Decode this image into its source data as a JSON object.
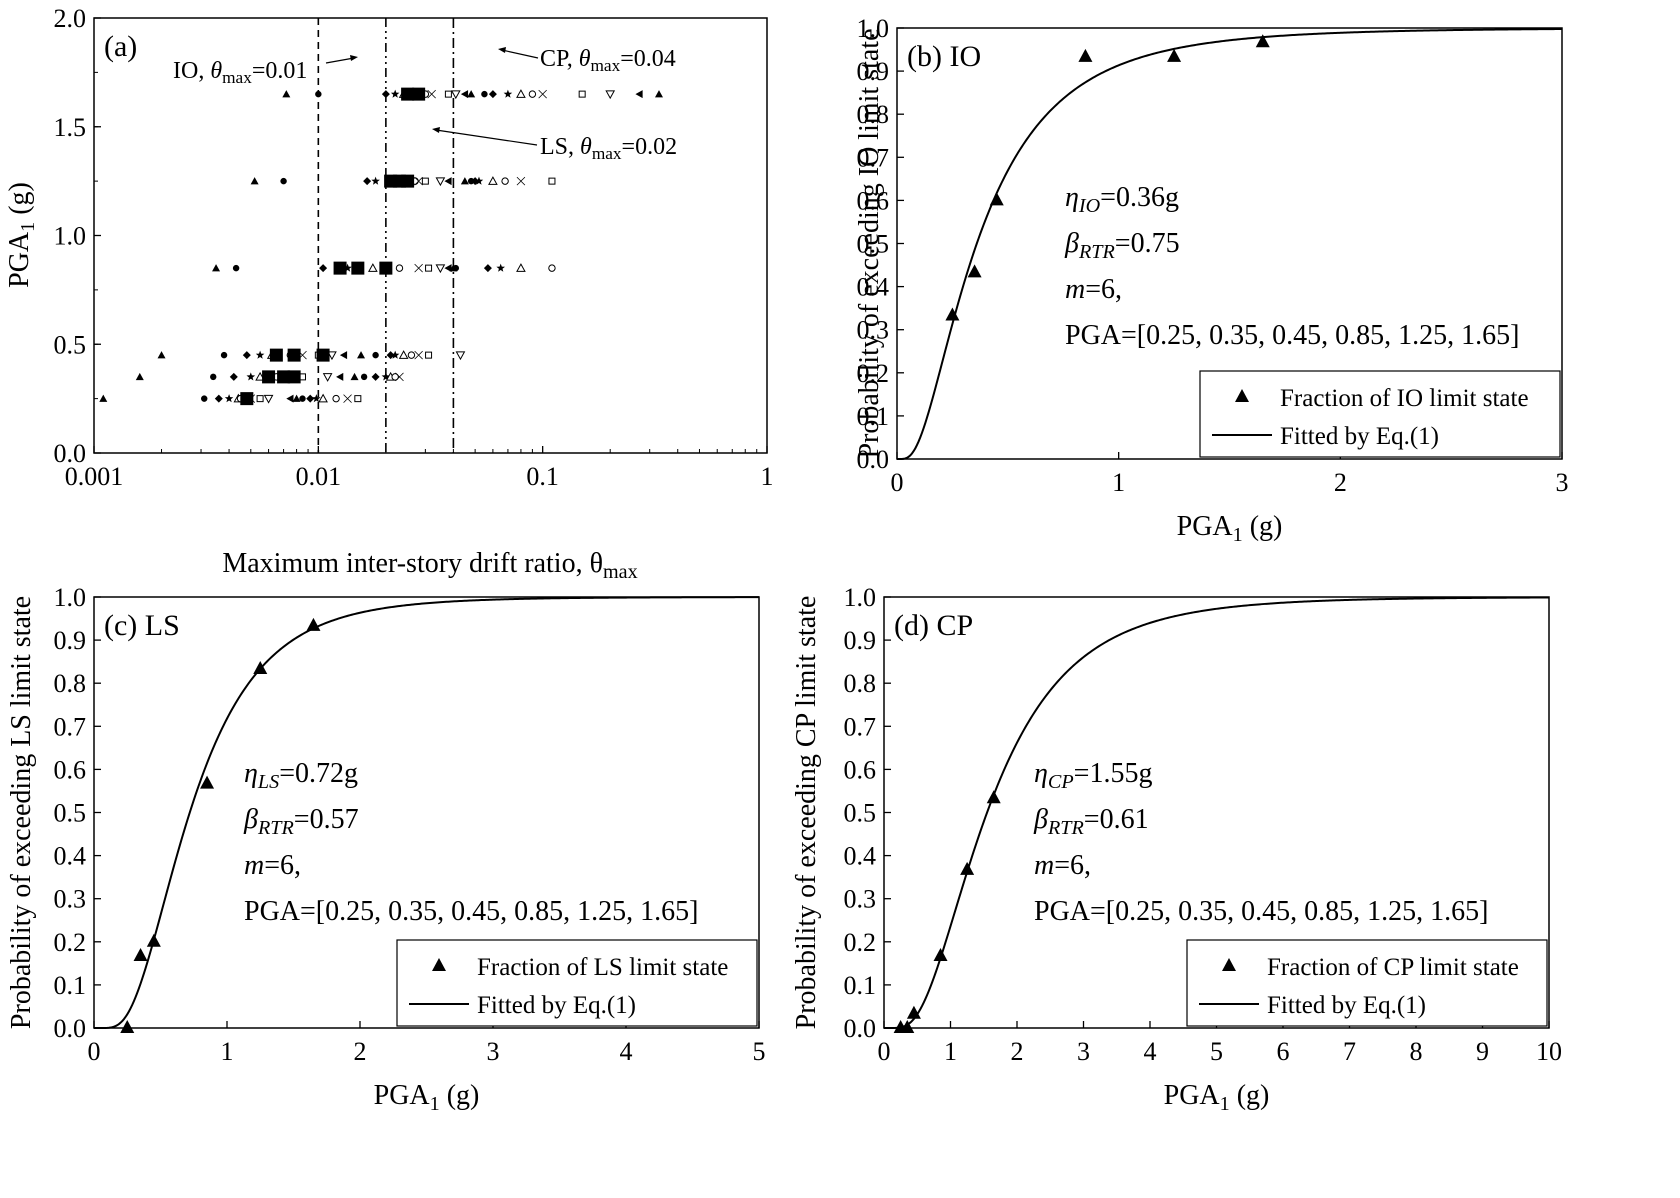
{
  "chart_data": [
    {
      "id": "a",
      "type": "scatter",
      "panel_label": "(a)",
      "xscale": "log",
      "xlim": [
        0.001,
        1
      ],
      "ylim": [
        0,
        2.0
      ],
      "xticks": [
        0.001,
        0.01,
        0.1,
        1
      ],
      "xtick_labels": [
        "0.001",
        "0.01",
        "0.1",
        "1"
      ],
      "yticks": [
        0,
        0.5,
        1.0,
        1.5,
        2.0
      ],
      "ytick_labels": [
        "0.0",
        "0.5",
        "1.0",
        "1.5",
        "2.0"
      ],
      "xlabel": "Maximum inter-story drift ratio, θ",
      "xlabel_sub": "max",
      "ylabel": "PGA",
      "ylabel_sub": "1",
      "ylabel_tail": " (g)",
      "limit_lines": [
        {
          "name": "IO",
          "x": 0.01,
          "text": "IO, ",
          "theta": "θ",
          "sub": "max",
          "value": "=0.01",
          "style": "dashed"
        },
        {
          "name": "LS",
          "x": 0.02,
          "text": "LS, ",
          "theta": "θ",
          "sub": "max",
          "value": "=0.02",
          "style": "dashdotdot"
        },
        {
          "name": "CP",
          "x": 0.04,
          "text": "CP, ",
          "theta": "θ",
          "sub": "max",
          "value": "=0.04",
          "style": "dashdot"
        }
      ],
      "groups": [
        {
          "pga": 0.25,
          "drifts": [
            0.0011,
            0.0031,
            0.0036,
            0.004,
            0.0044,
            0.0045,
            0.005,
            0.0055,
            0.006,
            0.0075,
            0.008,
            0.0085,
            0.0092,
            0.0098,
            0.0105,
            0.012,
            0.0135,
            0.015
          ],
          "medians": [
            0.0048
          ]
        },
        {
          "pga": 0.35,
          "drifts": [
            0.0016,
            0.0034,
            0.0042,
            0.005,
            0.0055,
            0.0065,
            0.0075,
            0.0085,
            0.011,
            0.0125,
            0.0145,
            0.016,
            0.018,
            0.02,
            0.021,
            0.022,
            0.023
          ],
          "medians": [
            0.006,
            0.007,
            0.0078
          ]
        },
        {
          "pga": 0.45,
          "drifts": [
            0.002,
            0.0038,
            0.0048,
            0.0055,
            0.0062,
            0.0075,
            0.0085,
            0.01,
            0.0115,
            0.013,
            0.0155,
            0.018,
            0.021,
            0.022,
            0.024,
            0.026,
            0.028,
            0.031,
            0.043
          ],
          "medians": [
            0.0065,
            0.0078,
            0.0105
          ]
        },
        {
          "pga": 0.85,
          "drifts": [
            0.0035,
            0.0043,
            0.0105,
            0.0135,
            0.0175,
            0.023,
            0.028,
            0.031,
            0.035,
            0.038,
            0.04,
            0.041,
            0.057,
            0.065,
            0.08,
            0.11
          ],
          "medians": [
            0.0125,
            0.015,
            0.02
          ]
        },
        {
          "pga": 1.25,
          "drifts": [
            0.0052,
            0.007,
            0.0165,
            0.018,
            0.021,
            0.027,
            0.028,
            0.03,
            0.035,
            0.038,
            0.045,
            0.048,
            0.05,
            0.052,
            0.06,
            0.068,
            0.08,
            0.11
          ],
          "medians": [
            0.021,
            0.023,
            0.025
          ]
        },
        {
          "pga": 1.65,
          "drifts": [
            0.0072,
            0.01,
            0.02,
            0.022,
            0.024,
            0.03,
            0.032,
            0.038,
            0.041,
            0.045,
            0.048,
            0.055,
            0.06,
            0.07,
            0.08,
            0.09,
            0.1,
            0.15,
            0.2,
            0.27,
            0.33
          ],
          "medians": [
            0.025,
            0.028
          ]
        }
      ]
    },
    {
      "id": "b",
      "type": "scatter+line",
      "panel_label": "(b)",
      "state": "IO",
      "xlim": [
        0,
        3
      ],
      "ylim": [
        0,
        1.0
      ],
      "xticks": [
        0,
        1,
        2,
        3
      ],
      "xtick_labels": [
        "0",
        "1",
        "2",
        "3"
      ],
      "yticks": [
        0,
        0.1,
        0.2,
        0.3,
        0.4,
        0.5,
        0.6,
        0.7,
        0.8,
        0.9,
        1.0
      ],
      "ytick_labels": [
        "0.0",
        "0.1",
        "0.2",
        "0.3",
        "0.4",
        "0.5",
        "0.6",
        "0.7",
        "0.8",
        "0.9",
        "1.0"
      ],
      "xlabel": "PGA",
      "xlabel_sub": "1",
      "xlabel_tail": " (g)",
      "ylabel": "Probability of exceeding IO limit state",
      "eta_symbol": "η",
      "eta_sub": "IO",
      "eta_value": "=0.36g",
      "beta_symbol": "β",
      "beta_sub": "RTR",
      "beta_value": "=0.75",
      "m_symbol": "m",
      "m_value": "=6,",
      "pga_text": "PGA=[0.25, 0.35, 0.45, 0.85, 1.25, 1.65]",
      "median": 0.36,
      "beta": 0.75,
      "points_x": [
        0.25,
        0.35,
        0.45,
        0.85,
        1.25,
        1.65
      ],
      "points_y": [
        0.333,
        0.433,
        0.6,
        0.933,
        0.933,
        0.967
      ],
      "legend": [
        "Fraction of IO limit state",
        "Fitted by Eq.(1)"
      ]
    },
    {
      "id": "c",
      "type": "scatter+line",
      "panel_label": "(c)",
      "state": "LS",
      "xlim": [
        0,
        5
      ],
      "ylim": [
        0,
        1.0
      ],
      "xticks": [
        0,
        1,
        2,
        3,
        4,
        5
      ],
      "xtick_labels": [
        "0",
        "1",
        "2",
        "3",
        "4",
        "5"
      ],
      "yticks": [
        0,
        0.1,
        0.2,
        0.3,
        0.4,
        0.5,
        0.6,
        0.7,
        0.8,
        0.9,
        1.0
      ],
      "ytick_labels": [
        "0.0",
        "0.1",
        "0.2",
        "0.3",
        "0.4",
        "0.5",
        "0.6",
        "0.7",
        "0.8",
        "0.9",
        "1.0"
      ],
      "xlabel": "PGA",
      "xlabel_sub": "1",
      "xlabel_tail": " (g)",
      "ylabel": "Probability of exceeding LS limit state",
      "eta_symbol": "η",
      "eta_sub": "LS",
      "eta_value": "=0.72g",
      "beta_symbol": "β",
      "beta_sub": "RTR",
      "beta_value": "=0.57",
      "m_symbol": "m",
      "m_value": "=6,",
      "pga_text": "PGA=[0.25, 0.35, 0.45, 0.85, 1.25, 1.65]",
      "median": 0.72,
      "beta": 0.57,
      "points_x": [
        0.25,
        0.35,
        0.45,
        0.85,
        1.25,
        1.65
      ],
      "points_y": [
        0.0,
        0.167,
        0.2,
        0.567,
        0.833,
        0.933
      ],
      "legend": [
        "Fraction of LS limit state",
        "Fitted by Eq.(1)"
      ]
    },
    {
      "id": "d",
      "type": "scatter+line",
      "panel_label": "(d)",
      "state": "CP",
      "xlim": [
        0,
        10
      ],
      "ylim": [
        0,
        1.0
      ],
      "xticks": [
        0,
        1,
        2,
        3,
        4,
        5,
        6,
        7,
        8,
        9,
        10
      ],
      "xtick_labels": [
        "0",
        "1",
        "2",
        "3",
        "4",
        "5",
        "6",
        "7",
        "8",
        "9",
        "10"
      ],
      "yticks": [
        0,
        0.1,
        0.2,
        0.3,
        0.4,
        0.5,
        0.6,
        0.7,
        0.8,
        0.9,
        1.0
      ],
      "ytick_labels": [
        "0.0",
        "0.1",
        "0.2",
        "0.3",
        "0.4",
        "0.5",
        "0.6",
        "0.7",
        "0.8",
        "0.9",
        "1.0"
      ],
      "xlabel": "PGA",
      "xlabel_sub": "1",
      "xlabel_tail": " (g)",
      "ylabel": "Probability of exceeding CP limit state",
      "eta_symbol": "η",
      "eta_sub": "CP",
      "eta_value": "=1.55g",
      "beta_symbol": "β",
      "beta_sub": "RTR",
      "beta_value": "=0.61",
      "m_symbol": "m",
      "m_value": "=6,",
      "pga_text": "PGA=[0.25, 0.35, 0.45, 0.85, 1.25, 1.65]",
      "median": 1.55,
      "beta": 0.61,
      "points_x": [
        0.25,
        0.35,
        0.45,
        0.85,
        1.25,
        1.65
      ],
      "points_y": [
        0.0,
        0.0,
        0.033,
        0.167,
        0.367,
        0.533
      ],
      "legend": [
        "Fraction of CP limit state",
        "Fitted by Eq.(1)"
      ]
    }
  ]
}
